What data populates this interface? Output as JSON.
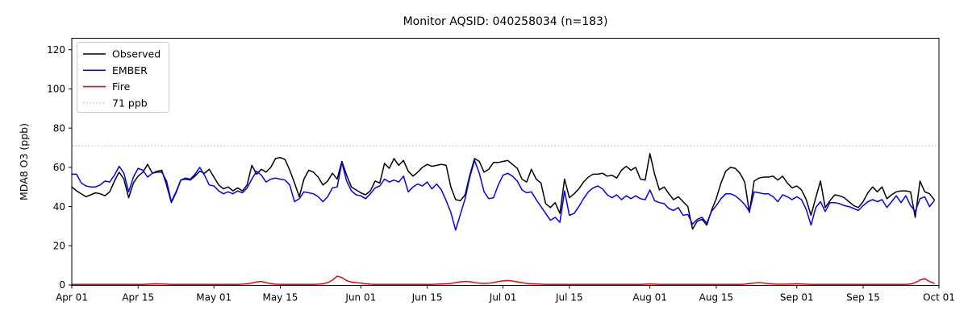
{
  "chart_data": {
    "type": "line",
    "title": "Monitor AQSID: 040258034 (n=183)",
    "ylabel": "MDA8 O3 (ppb)",
    "xlabel": "",
    "ylim": [
      0,
      125.8
    ],
    "yticks": [
      0,
      20,
      40,
      60,
      80,
      100,
      120
    ],
    "grid": false,
    "x_axis": {
      "start": "Apr 01",
      "end": "Oct 01",
      "n_points": 183,
      "unit": "days"
    },
    "xticks": [
      {
        "label": "Apr 01",
        "day": 0
      },
      {
        "label": "Apr 15",
        "day": 14
      },
      {
        "label": "May 01",
        "day": 30
      },
      {
        "label": "May 15",
        "day": 44
      },
      {
        "label": "Jun 01",
        "day": 61
      },
      {
        "label": "Jun 15",
        "day": 75
      },
      {
        "label": "Jul 01",
        "day": 91
      },
      {
        "label": "Jul 15",
        "day": 105
      },
      {
        "label": "Aug 01",
        "day": 122
      },
      {
        "label": "Aug 15",
        "day": 136
      },
      {
        "label": "Sep 01",
        "day": 153
      },
      {
        "label": "Sep 15",
        "day": 167
      },
      {
        "label": "Oct 01",
        "day": 183
      }
    ],
    "threshold": {
      "label": "71 ppb",
      "value": 71,
      "color": "#cccccc",
      "style": "dotted"
    },
    "legend": {
      "position": "upper left",
      "entries": [
        {
          "label": "Observed",
          "color": "#000000",
          "style": "solid"
        },
        {
          "label": "EMBER",
          "color": "#0000ff",
          "style": "solid"
        },
        {
          "label": "Fire",
          "color": "#ff0000",
          "style": "solid"
        },
        {
          "label": "71 ppb",
          "color": "#cccccc",
          "style": "dotted"
        }
      ]
    },
    "series": [
      {
        "name": "Observed",
        "color": "#000000",
        "values": [
          50,
          48,
          46.5,
          45,
          46,
          47,
          46.5,
          45.5,
          47.5,
          53,
          57.5,
          54,
          44.5,
          52,
          55.5,
          57.5,
          61.5,
          57,
          58,
          58.5,
          51,
          42,
          47,
          53.5,
          54,
          53.5,
          55.5,
          58,
          57,
          59,
          55,
          51,
          49,
          50,
          48,
          49.5,
          48,
          51,
          61,
          56.5,
          59,
          57.5,
          60,
          64.5,
          65,
          64,
          58.5,
          52,
          45,
          54,
          58.5,
          57.5,
          55,
          51,
          53,
          57,
          54,
          63,
          56,
          50,
          48.5,
          47,
          46,
          48,
          53,
          52,
          62,
          59.5,
          64.5,
          61,
          63.5,
          58,
          55.5,
          57.5,
          60,
          61.5,
          60.5,
          61,
          61.5,
          61,
          50,
          43.5,
          43,
          46,
          56,
          64.5,
          63,
          57.5,
          59,
          62.5,
          62.5,
          63,
          63.5,
          61.5,
          59.5,
          54,
          52.5,
          59,
          54,
          52,
          41.5,
          39.5,
          42,
          36.5,
          54,
          44.5,
          46.5,
          49,
          52.5,
          55,
          56.5,
          56.5,
          57,
          55.5,
          56,
          54.5,
          58.5,
          60.5,
          58.5,
          60,
          54,
          53.5,
          67,
          56.5,
          48.5,
          50,
          46.5,
          43.5,
          45,
          42.5,
          40,
          28.5,
          32.5,
          33.5,
          30.5,
          38,
          44,
          52,
          58,
          60,
          59.5,
          57,
          52.5,
          37,
          53,
          54.5,
          55,
          55,
          55.5,
          53.5,
          55.5,
          52,
          49.5,
          50.5,
          48.5,
          43.5,
          35.5,
          44.5,
          53,
          39.5,
          43,
          46,
          45.5,
          44.5,
          42.5,
          40.5,
          39.5,
          42.5,
          47,
          50,
          47.5,
          50,
          44,
          46,
          47.5,
          48,
          48,
          47.5,
          34.5,
          53,
          47.5,
          46.5,
          43.5
        ]
      },
      {
        "name": "EMBER",
        "color": "#0000ff",
        "values": [
          56.5,
          56.5,
          52,
          50.5,
          50,
          50,
          51,
          53,
          52.5,
          56,
          60.5,
          57,
          47.5,
          55,
          59.5,
          58.5,
          55,
          57,
          57.5,
          57.5,
          53,
          42.5,
          47.5,
          53.5,
          54.5,
          54,
          56.5,
          60,
          56,
          51,
          50.5,
          48,
          46.5,
          47.5,
          46.5,
          48,
          47,
          49.5,
          54,
          58,
          56,
          52.5,
          54,
          54.5,
          54,
          53.5,
          51,
          42.5,
          44,
          47.5,
          47,
          46.5,
          45,
          42.5,
          45,
          49.5,
          50,
          62.5,
          53,
          48,
          46,
          45.5,
          44,
          46.5,
          49.5,
          50.5,
          54,
          52.5,
          53.5,
          52.5,
          55.5,
          47.5,
          50,
          51.5,
          50.5,
          52.5,
          49,
          51.5,
          48.5,
          43,
          37,
          28,
          36,
          44,
          55,
          63.5,
          57,
          47.5,
          44,
          44.5,
          51,
          56,
          57,
          55.5,
          53,
          48.5,
          47,
          47.5,
          43.5,
          40,
          36.5,
          33,
          34.5,
          32,
          48,
          35.5,
          36.5,
          40,
          44,
          47.5,
          49.5,
          50.5,
          49,
          46,
          44.5,
          46,
          43.5,
          45.5,
          44,
          45.5,
          44,
          43.5,
          48.5,
          43,
          42,
          41.5,
          39,
          38,
          39.5,
          35.5,
          36,
          31,
          33.5,
          34.5,
          31.5,
          37.5,
          40.5,
          44,
          46.5,
          46.5,
          45.5,
          43.5,
          41,
          37.5,
          47.5,
          47,
          46.5,
          46.5,
          45,
          42.5,
          46,
          45,
          43.5,
          45,
          43.5,
          38.5,
          30.5,
          39.5,
          42.5,
          37.5,
          42,
          42,
          41.5,
          40.5,
          40,
          39,
          38,
          40.5,
          42.5,
          43.5,
          42.5,
          43.5,
          39.5,
          42.5,
          45.5,
          42,
          45.5,
          40.5,
          37.5,
          44,
          45,
          40,
          43
        ]
      },
      {
        "name": "Fire",
        "color": "#ff0000",
        "values": [
          0.3,
          0.3,
          0.3,
          0.3,
          0.3,
          0.3,
          0.3,
          0.3,
          0.3,
          0.3,
          0.3,
          0.3,
          0.3,
          0.3,
          0.3,
          0.3,
          0.4,
          0.5,
          0.6,
          0.5,
          0.4,
          0.3,
          0.3,
          0.3,
          0.3,
          0.3,
          0.3,
          0.3,
          0.3,
          0.3,
          0.3,
          0.3,
          0.3,
          0.3,
          0.3,
          0.3,
          0.4,
          0.6,
          1,
          1.5,
          1.8,
          1.2,
          0.7,
          0.4,
          0.3,
          0.3,
          0.3,
          0.3,
          0.3,
          0.3,
          0.3,
          0.3,
          0.4,
          0.6,
          1.2,
          2.5,
          4.5,
          3.8,
          2.2,
          1.5,
          1.2,
          1,
          0.6,
          0.4,
          0.3,
          0.3,
          0.3,
          0.3,
          0.3,
          0.3,
          0.3,
          0.3,
          0.3,
          0.3,
          0.3,
          0.3,
          0.3,
          0.4,
          0.5,
          0.6,
          0.8,
          1.2,
          1.6,
          1.8,
          1.7,
          1.2,
          0.9,
          0.8,
          0.9,
          1.2,
          1.8,
          2.1,
          2.3,
          2,
          1.6,
          1.2,
          0.8,
          0.6,
          0.5,
          0.4,
          0.3,
          0.3,
          0.3,
          0.3,
          0.3,
          0.3,
          0.3,
          0.3,
          0.3,
          0.3,
          0.3,
          0.3,
          0.3,
          0.3,
          0.3,
          0.3,
          0.3,
          0.3,
          0.3,
          0.3,
          0.3,
          0.4,
          0.5,
          0.4,
          0.3,
          0.3,
          0.3,
          0.3,
          0.3,
          0.3,
          0.3,
          0.3,
          0.3,
          0.3,
          0.3,
          0.3,
          0.3,
          0.3,
          0.3,
          0.3,
          0.3,
          0.3,
          0.4,
          0.7,
          1,
          1.2,
          1,
          0.7,
          0.5,
          0.4,
          0.4,
          0.4,
          0.5,
          0.6,
          0.5,
          0.4,
          0.3,
          0.3,
          0.3,
          0.3,
          0.3,
          0.3,
          0.3,
          0.3,
          0.3,
          0.3,
          0.3,
          0.3,
          0.3,
          0.3,
          0.3,
          0.3,
          0.3,
          0.3,
          0.3,
          0.3,
          0.3,
          0.5,
          1.2,
          2.5,
          3.2,
          1.8,
          0.8
        ]
      }
    ]
  }
}
